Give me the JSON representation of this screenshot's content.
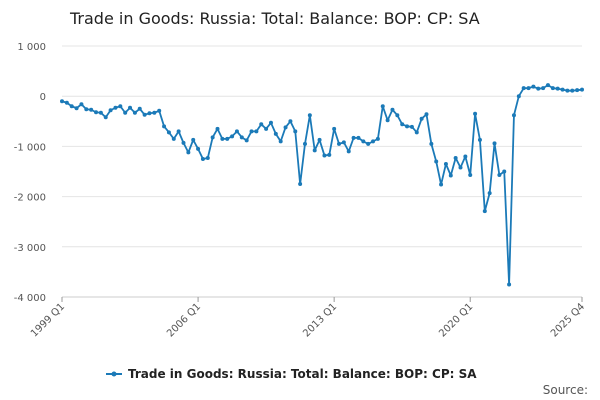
{
  "chart_data": {
    "type": "line",
    "title": "Trade in Goods: Russia: Total: Balance: BOP: CP: SA",
    "xlabel": "",
    "ylabel": "",
    "ylim": [
      -4000,
      1000
    ],
    "yticks": [
      1000,
      0,
      -1000,
      -2000,
      -3000,
      -4000
    ],
    "ytick_labels": [
      "1 000",
      "0",
      "-1 000",
      "-2 000",
      "-3 000",
      "-4 000"
    ],
    "xtick_labels": [
      "1999 Q1",
      "2006 Q1",
      "2013 Q1",
      "2020 Q1",
      "2025 Q4"
    ],
    "xtick_index": [
      0,
      28,
      56,
      84,
      107
    ],
    "grid": true,
    "legend_position": "bottom",
    "series": [
      {
        "name": "Trade in Goods: Russia: Total: Balance: BOP: CP: SA",
        "color": "#1b7ab8",
        "values": [
          -100,
          -130,
          -200,
          -240,
          -160,
          -260,
          -270,
          -320,
          -330,
          -420,
          -280,
          -230,
          -200,
          -330,
          -230,
          -330,
          -250,
          -370,
          -340,
          -330,
          -290,
          -600,
          -720,
          -850,
          -700,
          -930,
          -1120,
          -870,
          -1050,
          -1250,
          -1230,
          -820,
          -650,
          -850,
          -850,
          -800,
          -700,
          -820,
          -880,
          -700,
          -700,
          -560,
          -650,
          -530,
          -750,
          -900,
          -620,
          -500,
          -700,
          -1750,
          -950,
          -380,
          -1080,
          -870,
          -1180,
          -1170,
          -650,
          -950,
          -920,
          -1100,
          -830,
          -830,
          -900,
          -950,
          -900,
          -850,
          -200,
          -480,
          -270,
          -380,
          -560,
          -600,
          -610,
          -720,
          -450,
          -360,
          -950,
          -1300,
          -1760,
          -1350,
          -1580,
          -1230,
          -1420,
          -1200,
          -1570,
          -350,
          -870,
          -2290,
          -1930,
          -940,
          -1570,
          -1500,
          -3750,
          -380,
          0,
          160,
          160,
          190,
          150,
          160,
          220,
          160,
          150,
          130,
          110,
          110,
          120,
          130
        ]
      }
    ]
  },
  "legend": {
    "label": "Trade in Goods: Russia: Total: Balance: BOP: CP: SA"
  },
  "source": {
    "label": "Source:"
  }
}
